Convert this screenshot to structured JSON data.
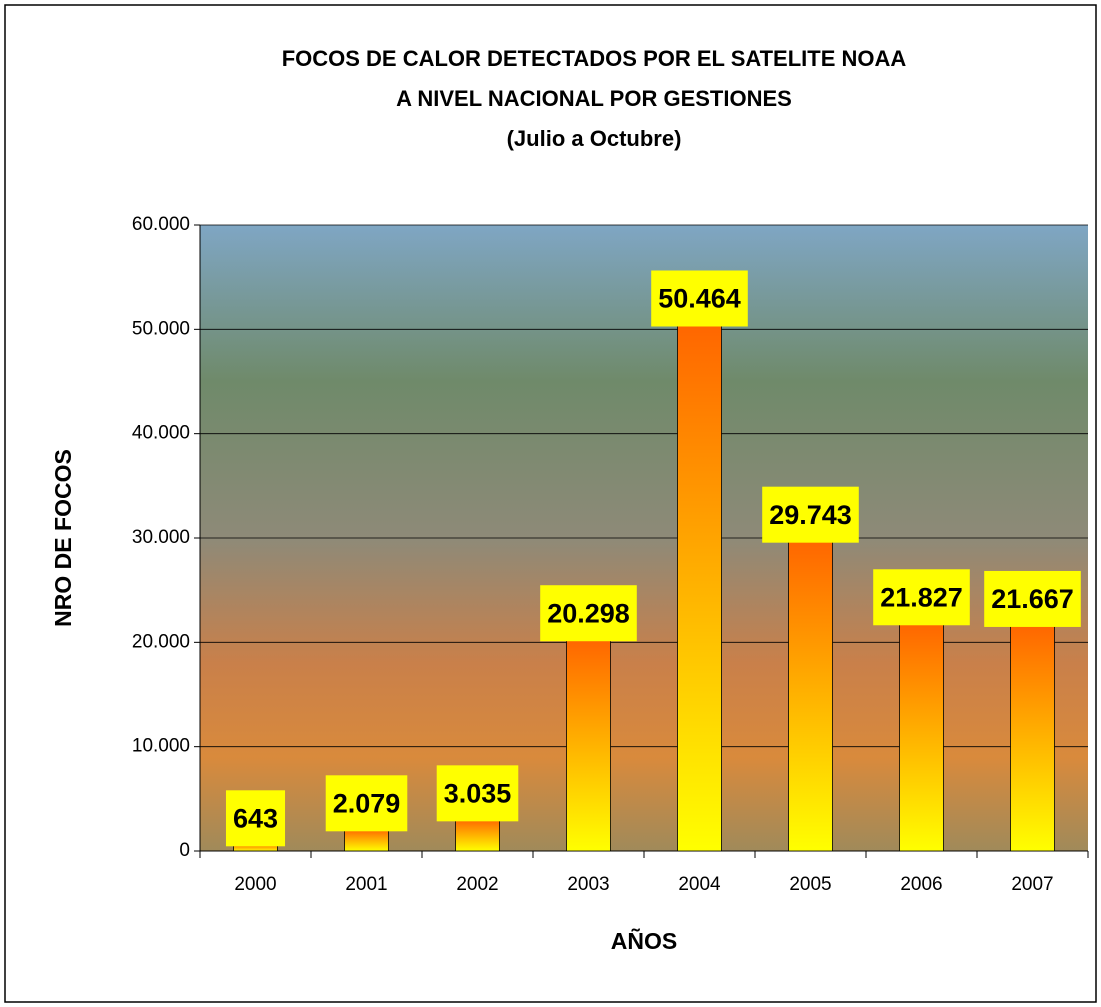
{
  "chart_data": {
    "type": "bar",
    "title": [
      "FOCOS DE CALOR DETECTADOS POR EL SATELITE NOAA",
      "A NIVEL NACIONAL POR GESTIONES"
    ],
    "subtitle": "(Julio a Octubre)",
    "xlabel": "AÑOS",
    "ylabel": "NRO DE FOCOS",
    "categories": [
      "2000",
      "2001",
      "2002",
      "2003",
      "2004",
      "2005",
      "2006",
      "2007"
    ],
    "values": [
      643,
      2079,
      3035,
      20298,
      50464,
      29743,
      21827,
      21667
    ],
    "value_labels": [
      "643",
      "2.079",
      "3.035",
      "20.298",
      "50.464",
      "29.743",
      "21.827",
      "21.667"
    ],
    "color": [
      "#ff6600",
      "#ffff00"
    ],
    "ylim": [
      0,
      60000
    ],
    "yticks": [
      0,
      {
        "value": 10000,
        "label": "10.000"
      },
      {
        "value": 20000,
        "label": "20.000"
      },
      {
        "value": 30000,
        "label": "30.000"
      },
      {
        "value": 40000,
        "label": "40.000"
      },
      {
        "value": 50000,
        "label": "50.000"
      },
      {
        "value": 60000,
        "label": "60.000"
      }
    ],
    "grid": true
  }
}
